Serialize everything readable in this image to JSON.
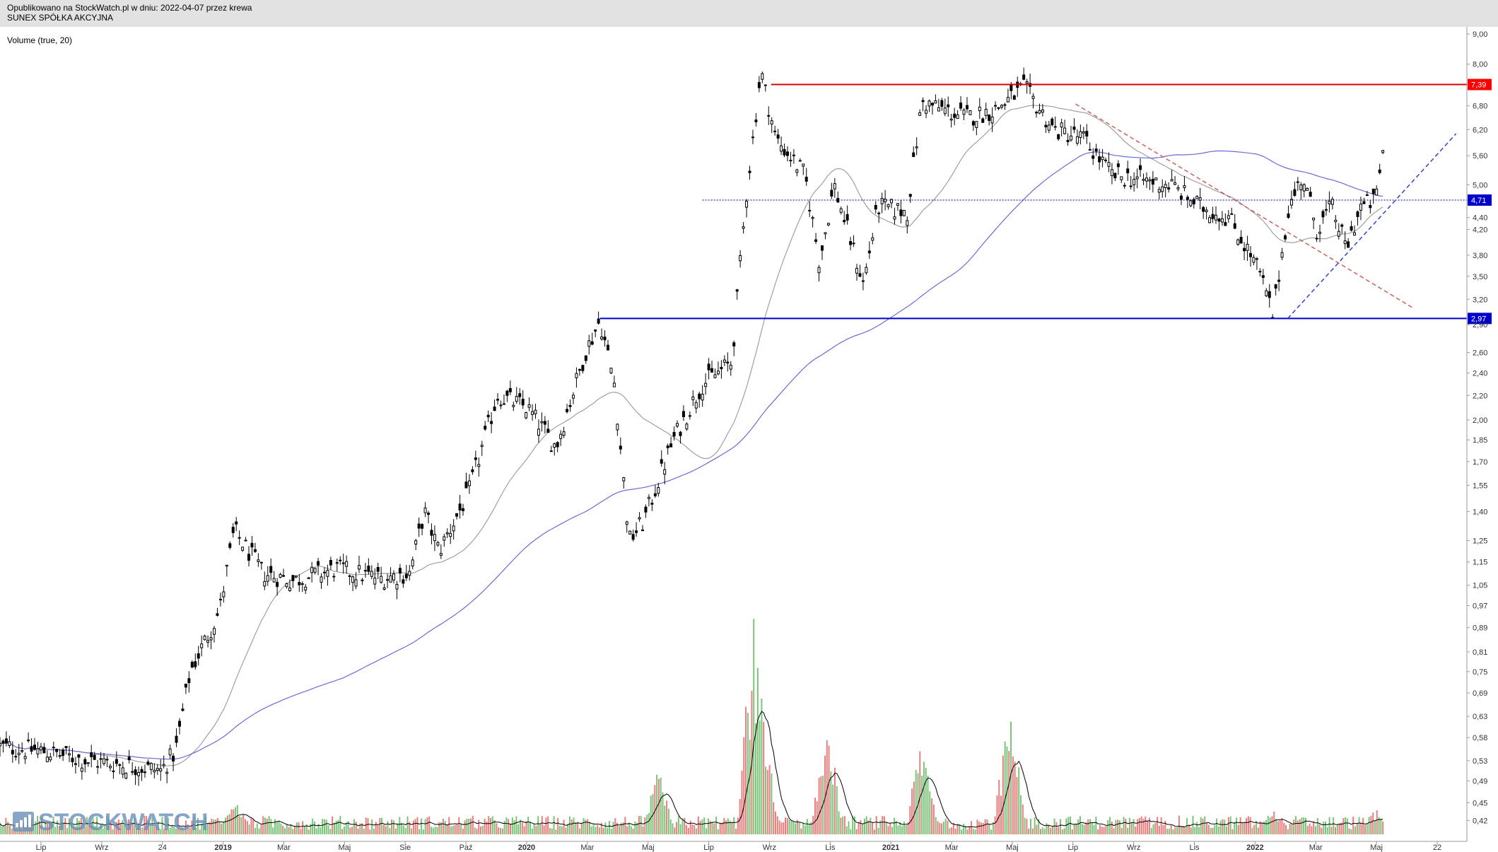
{
  "header": {
    "published": "Opublikowano na StockWatch.pl w dniu: 2022-04-07 przez krewa",
    "company": "SUNEX SPÓŁKA AKCYJNA"
  },
  "indicator_label": "Volume (true, 20)",
  "logo": {
    "text": "STOCKWATCH"
  },
  "colors": {
    "candle": "#000000",
    "ma_short": "#a0a0a0",
    "ma_long": "#6b6bd6",
    "resistance": "#e00000",
    "support": "#0000cc",
    "mid_level": "#000099",
    "down_trend": "#d06060",
    "up_trend": "#3040d0",
    "volume_up": "#7cc47c",
    "volume_down": "#e88080",
    "volume_avg": "#000000",
    "label_red_bg": "#ff0000",
    "label_blue_bg": "#0000cc"
  },
  "chart_data": {
    "type": "candlestick",
    "y_scale": "log",
    "ylim": [
      0.4,
      9.0
    ],
    "y_ticks": [
      "9,00",
      "8,00",
      "7,39",
      "6,80",
      "6,20",
      "5,60",
      "5,00",
      "4,71",
      "4,40",
      "4,20",
      "3,80",
      "3,50",
      "3,20",
      "2,97",
      "2,90",
      "2,60",
      "2,40",
      "2,20",
      "2,00",
      "1,85",
      "1,70",
      "1,55",
      "1,40",
      "1,25",
      "1,15",
      "1,05",
      "0,97",
      "0,89",
      "0,81",
      "0,75",
      "0,69",
      "0,63",
      "0,58",
      "0,53",
      "0,49",
      "0,45",
      "0,42"
    ],
    "x_ticks": [
      "Lip",
      "Wrz",
      "24",
      "2019",
      "Mar",
      "Maj",
      "Sie",
      "Paź",
      "2020",
      "Mar",
      "Maj",
      "Lip",
      "Wrz",
      "Lis",
      "2021",
      "Mar",
      "Maj",
      "Lip",
      "Wrz",
      "Lis",
      "2022",
      "Mar",
      "Maj",
      "22"
    ],
    "price_path": [
      {
        "t": 0.0,
        "p": 0.56
      },
      {
        "t": 0.03,
        "p": 0.55
      },
      {
        "t": 0.06,
        "p": 0.53
      },
      {
        "t": 0.09,
        "p": 0.52
      },
      {
        "t": 0.11,
        "p": 0.51
      },
      {
        "t": 0.12,
        "p": 0.55
      },
      {
        "t": 0.13,
        "p": 0.75
      },
      {
        "t": 0.15,
        "p": 0.95
      },
      {
        "t": 0.16,
        "p": 1.3
      },
      {
        "t": 0.18,
        "p": 1.1
      },
      {
        "t": 0.2,
        "p": 1.07
      },
      {
        "t": 0.23,
        "p": 1.12
      },
      {
        "t": 0.26,
        "p": 1.08
      },
      {
        "t": 0.28,
        "p": 1.1
      },
      {
        "t": 0.29,
        "p": 1.4
      },
      {
        "t": 0.3,
        "p": 1.2
      },
      {
        "t": 0.32,
        "p": 1.5
      },
      {
        "t": 0.34,
        "p": 2.2
      },
      {
        "t": 0.36,
        "p": 2.1
      },
      {
        "t": 0.38,
        "p": 1.8
      },
      {
        "t": 0.4,
        "p": 2.6
      },
      {
        "t": 0.41,
        "p": 2.95
      },
      {
        "t": 0.42,
        "p": 2.3
      },
      {
        "t": 0.43,
        "p": 1.25
      },
      {
        "t": 0.44,
        "p": 1.35
      },
      {
        "t": 0.46,
        "p": 1.85
      },
      {
        "t": 0.48,
        "p": 2.3
      },
      {
        "t": 0.5,
        "p": 2.5
      },
      {
        "t": 0.51,
        "p": 4.8
      },
      {
        "t": 0.52,
        "p": 7.8
      },
      {
        "t": 0.53,
        "p": 6.0
      },
      {
        "t": 0.55,
        "p": 5.2
      },
      {
        "t": 0.56,
        "p": 3.7
      },
      {
        "t": 0.57,
        "p": 5.0
      },
      {
        "t": 0.59,
        "p": 3.4
      },
      {
        "t": 0.6,
        "p": 4.6
      },
      {
        "t": 0.62,
        "p": 4.5
      },
      {
        "t": 0.63,
        "p": 6.9
      },
      {
        "t": 0.66,
        "p": 6.5
      },
      {
        "t": 0.68,
        "p": 6.7
      },
      {
        "t": 0.7,
        "p": 7.3
      },
      {
        "t": 0.72,
        "p": 6.2
      },
      {
        "t": 0.74,
        "p": 6.0
      },
      {
        "t": 0.76,
        "p": 5.2
      },
      {
        "t": 0.78,
        "p": 5.1
      },
      {
        "t": 0.8,
        "p": 5.0
      },
      {
        "t": 0.82,
        "p": 4.6
      },
      {
        "t": 0.84,
        "p": 4.4
      },
      {
        "t": 0.86,
        "p": 3.6
      },
      {
        "t": 0.87,
        "p": 3.0
      },
      {
        "t": 0.88,
        "p": 4.5
      },
      {
        "t": 0.89,
        "p": 5.2
      },
      {
        "t": 0.9,
        "p": 4.2
      },
      {
        "t": 0.91,
        "p": 4.6
      },
      {
        "t": 0.92,
        "p": 3.9
      },
      {
        "t": 0.93,
        "p": 4.6
      },
      {
        "t": 0.94,
        "p": 4.7
      },
      {
        "t": 0.945,
        "p": 5.7
      }
    ],
    "volume_ylim": [
      0,
      1
    ],
    "volume_peaks": [
      {
        "t": 0.16,
        "v": 0.2
      },
      {
        "t": 0.45,
        "v": 0.3
      },
      {
        "t": 0.515,
        "v": 1.0
      },
      {
        "t": 0.52,
        "v": 0.7
      },
      {
        "t": 0.565,
        "v": 0.55
      },
      {
        "t": 0.63,
        "v": 0.45
      },
      {
        "t": 0.69,
        "v": 0.6
      },
      {
        "t": 0.87,
        "v": 0.15
      },
      {
        "t": 0.94,
        "v": 0.12
      }
    ],
    "horizontal_lines": [
      {
        "name": "resistance",
        "value": 7.39,
        "label": "7,39",
        "from": 0.527
      },
      {
        "name": "support",
        "value": 2.97,
        "label": "2,97",
        "from": 0.41
      },
      {
        "name": "mid_level",
        "value": 4.71,
        "label": "4,71",
        "from": 0.48
      }
    ],
    "trend_lines": [
      {
        "name": "down_trend",
        "t1": 0.735,
        "p1": 6.85,
        "t2": 0.965,
        "p2": 3.1
      },
      {
        "name": "up_trend",
        "t1": 0.88,
        "p1": 2.97,
        "t2": 0.995,
        "p2": 6.1
      }
    ]
  }
}
